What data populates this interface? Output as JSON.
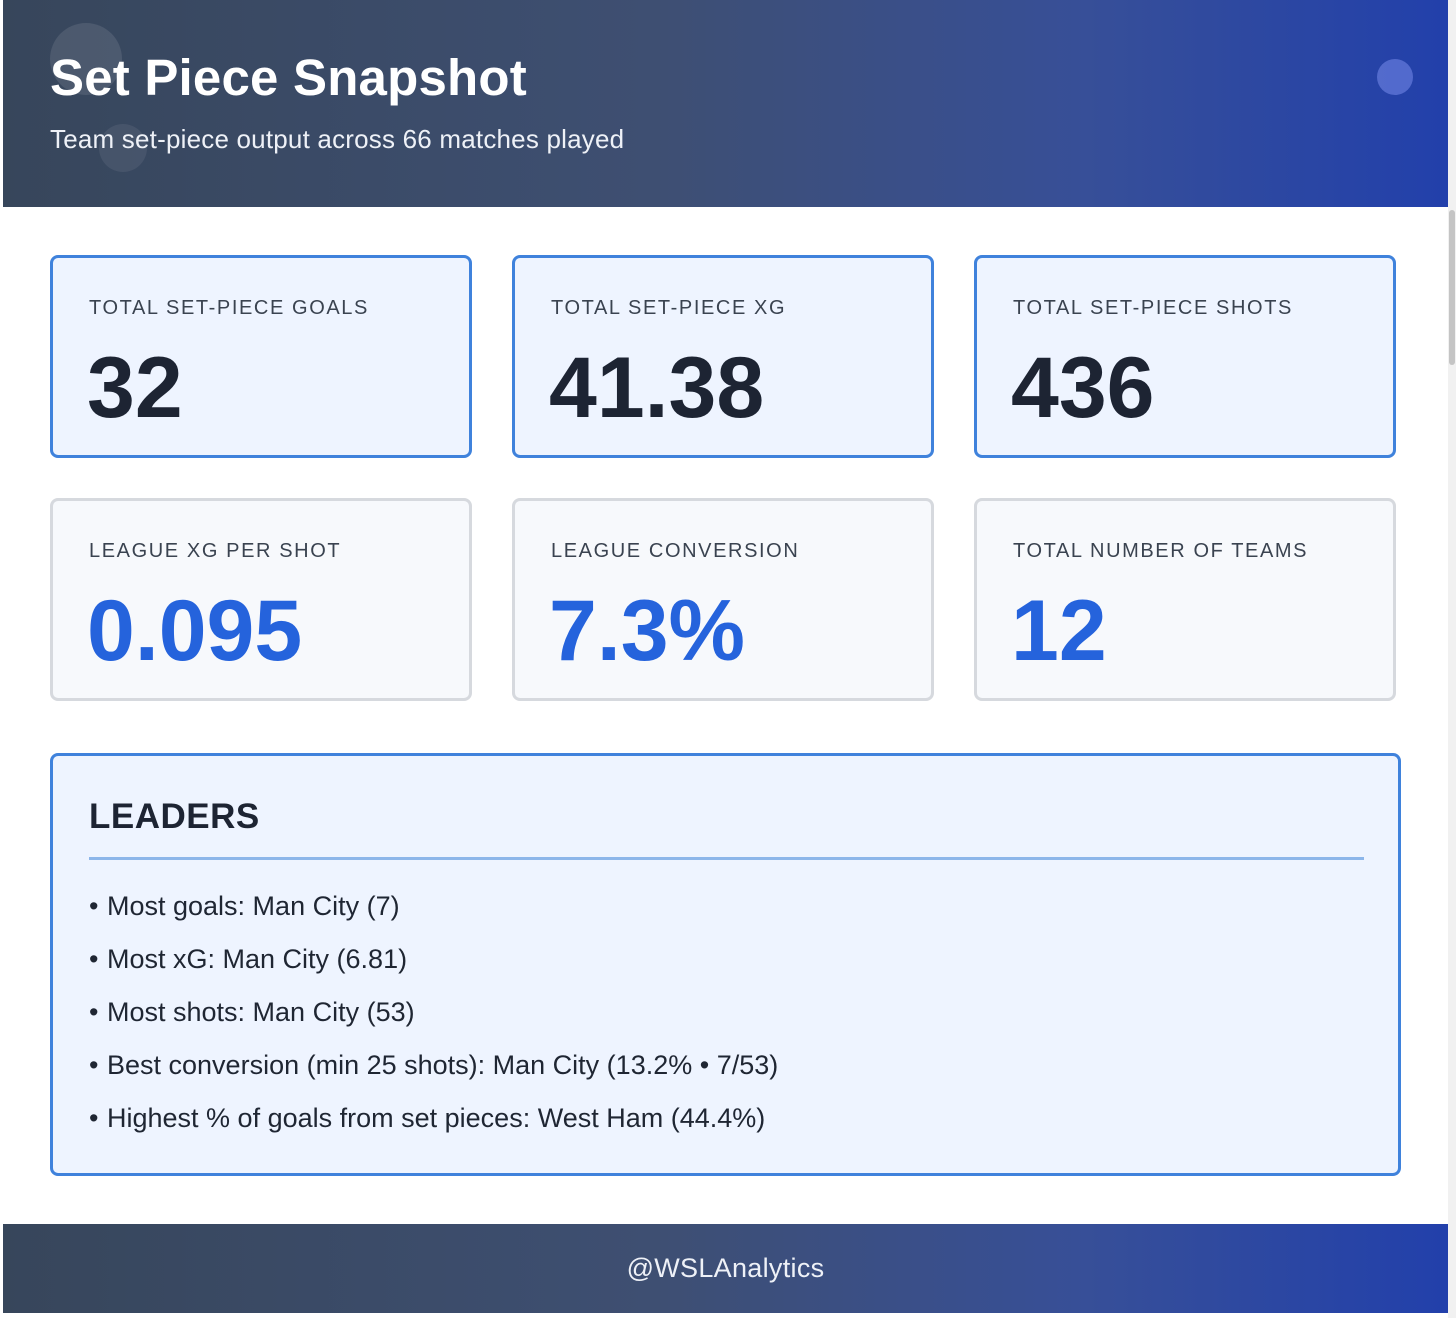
{
  "header": {
    "title": "Set Piece Snapshot",
    "subtitle": "Team set-piece output across 66 matches played"
  },
  "stats": [
    {
      "label": "TOTAL SET-PIECE GOALS",
      "value": "32",
      "style": "primary"
    },
    {
      "label": "TOTAL SET-PIECE XG",
      "value": "41.38",
      "style": "primary"
    },
    {
      "label": "TOTAL SET-PIECE SHOTS",
      "value": "436",
      "style": "primary"
    },
    {
      "label": "LEAGUE XG PER SHOT",
      "value": "0.095",
      "style": "secondary"
    },
    {
      "label": "LEAGUE CONVERSION",
      "value": "7.3%",
      "style": "secondary"
    },
    {
      "label": "TOTAL NUMBER OF TEAMS",
      "value": "12",
      "style": "secondary"
    }
  ],
  "leaders": {
    "title": "LEADERS",
    "bullet": "•",
    "items": [
      "Most goals: Man City (7)",
      "Most xG: Man City (6.81)",
      "Most shots: Man City (53)",
      "Best conversion (min 25 shots): Man City (13.2% • 7/53)",
      "Highest % of goals from set pieces: West Ham (44.4%)"
    ]
  },
  "footer": {
    "handle": "@WSLAnalytics"
  },
  "colors": {
    "accent_blue": "#2563dc",
    "card_border_blue": "#3f82dc",
    "header_dark": "#37465b",
    "header_blue": "#2240ab",
    "value_dark": "#1d2433"
  }
}
